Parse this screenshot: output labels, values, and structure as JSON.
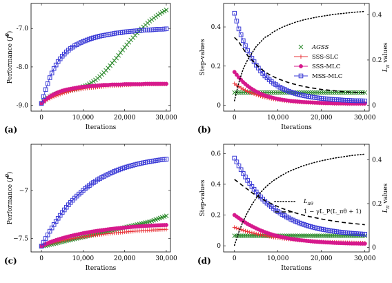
{
  "chart_data": [
    {
      "panel_label": "(a)",
      "type": "line",
      "xlabel": "Iterations",
      "ylabel": "Performance (J^θ)",
      "xlim": [
        -2500,
        31000
      ],
      "ylim": [
        -9.15,
        -6.35
      ],
      "xticks": [
        0,
        10000,
        20000,
        30000
      ],
      "xtick_labels": [
        "0",
        "10,000",
        "20,000",
        "30,000"
      ],
      "yticks": [
        -9.0,
        -8.0,
        -7.0
      ],
      "ytick_labels": [
        "-9.0",
        "-8.0",
        "-7.0"
      ],
      "x": [
        0,
        1000,
        2000,
        3000,
        4000,
        5000,
        6000,
        7000,
        8000,
        9000,
        10000,
        11000,
        12000,
        13000,
        14000,
        15000,
        16000,
        17000,
        18000,
        19000,
        20000,
        21000,
        22000,
        23000,
        24000,
        25000,
        26000,
        27000,
        28000,
        29000,
        30000
      ],
      "series": [
        {
          "name": "AGSS",
          "color": "#2e8b2e",
          "marker": "x",
          "values": [
            -8.95,
            -8.84,
            -8.77,
            -8.72,
            -8.68,
            -8.65,
            -8.62,
            -8.6,
            -8.58,
            -8.55,
            -8.51,
            -8.47,
            -8.41,
            -8.34,
            -8.25,
            -8.15,
            -8.03,
            -7.9,
            -7.77,
            -7.63,
            -7.49,
            -7.36,
            -7.24,
            -7.12,
            -7.01,
            -6.91,
            -6.81,
            -6.73,
            -6.65,
            -6.58,
            -6.52
          ]
        },
        {
          "name": "SSS-SLC",
          "color": "#e8343a",
          "marker": "+",
          "values": [
            -8.95,
            -8.88,
            -8.82,
            -8.77,
            -8.73,
            -8.69,
            -8.66,
            -8.63,
            -8.61,
            -8.59,
            -8.57,
            -8.55,
            -8.54,
            -8.53,
            -8.52,
            -8.51,
            -8.5,
            -8.49,
            -8.48,
            -8.48,
            -8.47,
            -8.47,
            -8.46,
            -8.46,
            -8.46,
            -8.45,
            -8.45,
            -8.45,
            -8.45,
            -8.45,
            -8.45
          ]
        },
        {
          "name": "SSS-MLC",
          "color": "#d6198c",
          "marker": "o",
          "values": [
            -8.95,
            -8.85,
            -8.77,
            -8.71,
            -8.66,
            -8.62,
            -8.59,
            -8.57,
            -8.55,
            -8.53,
            -8.52,
            -8.51,
            -8.5,
            -8.49,
            -8.48,
            -8.47,
            -8.47,
            -8.46,
            -8.46,
            -8.46,
            -8.45,
            -8.45,
            -8.45,
            -8.45,
            -8.45,
            -8.44,
            -8.44,
            -8.44,
            -8.44,
            -8.44,
            -8.44
          ]
        },
        {
          "name": "MSS-MLC",
          "color": "#3a3ad6",
          "marker": "s",
          "values": [
            -8.95,
            -8.59,
            -8.28,
            -8.04,
            -7.86,
            -7.72,
            -7.61,
            -7.52,
            -7.45,
            -7.39,
            -7.34,
            -7.3,
            -7.26,
            -7.23,
            -7.2,
            -7.18,
            -7.16,
            -7.14,
            -7.12,
            -7.11,
            -7.09,
            -7.08,
            -7.07,
            -7.06,
            -7.05,
            -7.04,
            -7.04,
            -7.03,
            -7.02,
            -7.02,
            -7.01
          ]
        }
      ]
    },
    {
      "panel_label": "(b)",
      "type": "line",
      "xlabel": "Iterations",
      "ylabel": "Step-values",
      "y2label": "L_π values",
      "xlim": [
        -2500,
        31000
      ],
      "ylim": [
        -0.03,
        0.52
      ],
      "y2lim": [
        -0.026,
        0.45
      ],
      "xticks": [
        0,
        10000,
        20000,
        30000
      ],
      "xtick_labels": [
        "0",
        "10,000",
        "20,000",
        "30,000"
      ],
      "yticks": [
        0,
        0.2,
        0.4
      ],
      "ytick_labels": [
        "0",
        "0.2",
        "0.4"
      ],
      "y2ticks": [
        0,
        0.2,
        0.4
      ],
      "y2tick_labels": [
        "0",
        "0.2",
        "0.4"
      ],
      "legend": [
        "AGSS",
        "SSS-SLC",
        "SSS-MLC",
        "MSS-MLC"
      ],
      "x": [
        0,
        1000,
        2000,
        3000,
        4000,
        5000,
        6000,
        7000,
        8000,
        9000,
        10000,
        11000,
        12000,
        13000,
        14000,
        15000,
        16000,
        17000,
        18000,
        19000,
        20000,
        21000,
        22000,
        23000,
        24000,
        25000,
        26000,
        27000,
        28000,
        29000,
        30000
      ],
      "series": [
        {
          "name": "AGSS",
          "color": "#2e8b2e",
          "marker": "x",
          "values": [
            0.065,
            0.065,
            0.065,
            0.065,
            0.065,
            0.065,
            0.065,
            0.065,
            0.065,
            0.065,
            0.065,
            0.065,
            0.065,
            0.065,
            0.065,
            0.065,
            0.065,
            0.065,
            0.065,
            0.065,
            0.065,
            0.065,
            0.065,
            0.065,
            0.065,
            0.065,
            0.065,
            0.065,
            0.065,
            0.065,
            0.065
          ]
        },
        {
          "name": "SSS-SLC",
          "color": "#e8343a",
          "marker": "+",
          "values": [
            0.11,
            0.095,
            0.082,
            0.071,
            0.062,
            0.054,
            0.047,
            0.041,
            0.036,
            0.032,
            0.028,
            0.025,
            0.022,
            0.02,
            0.018,
            0.016,
            0.015,
            0.014,
            0.013,
            0.012,
            0.011,
            0.01,
            0.01,
            0.009,
            0.009,
            0.009,
            0.008,
            0.008,
            0.008,
            0.008,
            0.008
          ]
        },
        {
          "name": "SSS-MLC",
          "color": "#d6198c",
          "marker": "o",
          "values": [
            0.17,
            0.142,
            0.118,
            0.099,
            0.083,
            0.07,
            0.059,
            0.05,
            0.043,
            0.037,
            0.032,
            0.028,
            0.025,
            0.022,
            0.02,
            0.018,
            0.016,
            0.015,
            0.014,
            0.013,
            0.012,
            0.011,
            0.011,
            0.01,
            0.01,
            0.01,
            0.009,
            0.009,
            0.009,
            0.009,
            0.009
          ]
        },
        {
          "name": "MSS-MLC",
          "color": "#3a3ad6",
          "marker": "s",
          "values": [
            0.47,
            0.39,
            0.33,
            0.28,
            0.24,
            0.205,
            0.175,
            0.15,
            0.13,
            0.113,
            0.098,
            0.086,
            0.076,
            0.067,
            0.06,
            0.054,
            0.049,
            0.045,
            0.041,
            0.038,
            0.035,
            0.033,
            0.031,
            0.029,
            0.028,
            0.026,
            0.025,
            0.024,
            0.023,
            0.023,
            0.022
          ]
        },
        {
          "name": "",
          "axis": "right",
          "color": "#000000",
          "style": "dotted",
          "values": [
            0.02,
            0.1,
            0.16,
            0.2,
            0.23,
            0.26,
            0.28,
            0.3,
            0.31,
            0.325,
            0.335,
            0.345,
            0.353,
            0.36,
            0.367,
            0.372,
            0.378,
            0.382,
            0.386,
            0.39,
            0.393,
            0.396,
            0.399,
            0.402,
            0.404,
            0.406,
            0.408,
            0.41,
            0.412,
            0.413,
            0.415
          ]
        },
        {
          "name": "",
          "axis": "right",
          "color": "#000000",
          "style": "dashed",
          "values": [
            0.3,
            0.28,
            0.25,
            0.22,
            0.2,
            0.18,
            0.162,
            0.148,
            0.136,
            0.126,
            0.117,
            0.11,
            0.103,
            0.097,
            0.092,
            0.087,
            0.083,
            0.079,
            0.076,
            0.073,
            0.07,
            0.068,
            0.066,
            0.064,
            0.062,
            0.06,
            0.059,
            0.058,
            0.057,
            0.056,
            0.055
          ]
        }
      ]
    },
    {
      "panel_label": "(c)",
      "type": "line",
      "xlabel": "Iterations",
      "ylabel": "Performance (J^θ)",
      "xlim": [
        -2500,
        31000
      ],
      "ylim": [
        -7.64,
        -6.52
      ],
      "xticks": [
        0,
        10000,
        20000,
        30000
      ],
      "xtick_labels": [
        "0",
        "10,000",
        "20,000",
        "30,000"
      ],
      "yticks": [
        -7.5,
        -7.0
      ],
      "ytick_labels": [
        "−7.5",
        "−7"
      ],
      "x": [
        0,
        1000,
        2000,
        3000,
        4000,
        5000,
        6000,
        7000,
        8000,
        9000,
        10000,
        11000,
        12000,
        13000,
        14000,
        15000,
        16000,
        17000,
        18000,
        19000,
        20000,
        21000,
        22000,
        23000,
        24000,
        25000,
        26000,
        27000,
        28000,
        29000,
        30000
      ],
      "series": [
        {
          "name": "AGSS",
          "color": "#2e8b2e",
          "marker": "x",
          "values": [
            -7.58,
            -7.575,
            -7.565,
            -7.555,
            -7.545,
            -7.535,
            -7.525,
            -7.515,
            -7.505,
            -7.495,
            -7.485,
            -7.475,
            -7.465,
            -7.455,
            -7.445,
            -7.435,
            -7.425,
            -7.415,
            -7.405,
            -7.395,
            -7.385,
            -7.375,
            -7.365,
            -7.355,
            -7.345,
            -7.335,
            -7.325,
            -7.31,
            -7.295,
            -7.28,
            -7.265
          ]
        },
        {
          "name": "SSS-SLC",
          "color": "#e8343a",
          "marker": "+",
          "values": [
            -7.58,
            -7.565,
            -7.552,
            -7.54,
            -7.53,
            -7.52,
            -7.512,
            -7.504,
            -7.497,
            -7.49,
            -7.483,
            -7.477,
            -7.471,
            -7.465,
            -7.46,
            -7.455,
            -7.45,
            -7.445,
            -7.441,
            -7.437,
            -7.433,
            -7.429,
            -7.426,
            -7.423,
            -7.42,
            -7.417,
            -7.414,
            -7.411,
            -7.409,
            -7.407,
            -7.405
          ]
        },
        {
          "name": "SSS-MLC",
          "color": "#d6198c",
          "marker": "o",
          "values": [
            -7.58,
            -7.558,
            -7.54,
            -7.524,
            -7.51,
            -7.497,
            -7.485,
            -7.474,
            -7.464,
            -7.455,
            -7.446,
            -7.438,
            -7.43,
            -7.423,
            -7.417,
            -7.411,
            -7.405,
            -7.4,
            -7.395,
            -7.391,
            -7.387,
            -7.383,
            -7.379,
            -7.376,
            -7.373,
            -7.37,
            -7.367,
            -7.365,
            -7.363,
            -7.361,
            -7.36
          ]
        },
        {
          "name": "MSS-MLC",
          "color": "#3a3ad6",
          "marker": "s",
          "values": [
            -7.58,
            -7.5,
            -7.425,
            -7.355,
            -7.29,
            -7.23,
            -7.175,
            -7.125,
            -7.08,
            -7.038,
            -7.0,
            -6.965,
            -6.933,
            -6.904,
            -6.878,
            -6.854,
            -6.832,
            -6.812,
            -6.794,
            -6.778,
            -6.763,
            -6.75,
            -6.738,
            -6.727,
            -6.717,
            -6.708,
            -6.7,
            -6.693,
            -6.686,
            -6.68,
            -6.675
          ]
        }
      ]
    },
    {
      "panel_label": "(d)",
      "type": "line",
      "xlabel": "Iterations",
      "ylabel": "Step-values",
      "y2label": "L_π values",
      "xlim": [
        -2500,
        31000
      ],
      "ylim": [
        -0.04,
        0.66
      ],
      "y2lim": [
        -0.02,
        0.47
      ],
      "xticks": [
        0,
        10000,
        20000,
        30000
      ],
      "xtick_labels": [
        "0",
        "10,000",
        "20,000",
        "30,000"
      ],
      "yticks": [
        0,
        0.2,
        0.4,
        0.6
      ],
      "ytick_labels": [
        "0",
        "0.2",
        "0.4",
        "0.6"
      ],
      "y2ticks": [
        0,
        0.2,
        0.4
      ],
      "y2tick_labels": [
        "0",
        "0.2",
        "0.4"
      ],
      "legend": [
        "L_πθ",
        "1 − γL_P(L_πθ + 1)"
      ],
      "x": [
        0,
        1000,
        2000,
        3000,
        4000,
        5000,
        6000,
        7000,
        8000,
        9000,
        10000,
        11000,
        12000,
        13000,
        14000,
        15000,
        16000,
        17000,
        18000,
        19000,
        20000,
        21000,
        22000,
        23000,
        24000,
        25000,
        26000,
        27000,
        28000,
        29000,
        30000
      ],
      "series": [
        {
          "name": "AGSS",
          "color": "#2e8b2e",
          "marker": "x",
          "values": [
            0.065,
            0.065,
            0.065,
            0.065,
            0.065,
            0.065,
            0.065,
            0.065,
            0.065,
            0.065,
            0.065,
            0.065,
            0.065,
            0.065,
            0.065,
            0.065,
            0.065,
            0.065,
            0.065,
            0.065,
            0.065,
            0.065,
            0.065,
            0.065,
            0.065,
            0.065,
            0.065,
            0.065,
            0.065,
            0.065,
            0.065
          ]
        },
        {
          "name": "SSS-SLC",
          "color": "#e8343a",
          "marker": "+",
          "values": [
            0.12,
            0.11,
            0.1,
            0.092,
            0.085,
            0.078,
            0.072,
            0.066,
            0.061,
            0.056,
            0.052,
            0.048,
            0.045,
            0.042,
            0.039,
            0.036,
            0.034,
            0.032,
            0.03,
            0.028,
            0.026,
            0.025,
            0.024,
            0.023,
            0.022,
            0.021,
            0.02,
            0.02,
            0.019,
            0.019,
            0.018
          ]
        },
        {
          "name": "SSS-MLC",
          "color": "#d6198c",
          "marker": "o",
          "values": [
            0.2,
            0.18,
            0.16,
            0.142,
            0.127,
            0.113,
            0.1,
            0.089,
            0.079,
            0.07,
            0.063,
            0.056,
            0.05,
            0.045,
            0.041,
            0.037,
            0.034,
            0.031,
            0.028,
            0.026,
            0.024,
            0.022,
            0.021,
            0.019,
            0.018,
            0.017,
            0.016,
            0.015,
            0.015,
            0.014,
            0.014
          ]
        },
        {
          "name": "MSS-MLC",
          "color": "#3a3ad6",
          "marker": "s",
          "values": [
            0.57,
            0.52,
            0.47,
            0.425,
            0.385,
            0.35,
            0.318,
            0.29,
            0.265,
            0.242,
            0.222,
            0.204,
            0.188,
            0.173,
            0.16,
            0.148,
            0.138,
            0.129,
            0.121,
            0.114,
            0.108,
            0.103,
            0.098,
            0.094,
            0.09,
            0.087,
            0.084,
            0.081,
            0.079,
            0.077,
            0.075
          ]
        },
        {
          "name": "L_πθ",
          "axis": "right",
          "color": "#000000",
          "style": "dotted",
          "values": [
            0.01,
            0.07,
            0.12,
            0.16,
            0.195,
            0.225,
            0.25,
            0.272,
            0.29,
            0.305,
            0.318,
            0.33,
            0.341,
            0.35,
            0.358,
            0.366,
            0.373,
            0.379,
            0.385,
            0.39,
            0.395,
            0.399,
            0.403,
            0.407,
            0.41,
            0.413,
            0.416,
            0.419,
            0.421,
            0.423,
            0.425
          ]
        },
        {
          "name": "1 − γL_P(L_πθ + 1)",
          "axis": "right",
          "color": "#000000",
          "style": "dashed",
          "values": [
            0.31,
            0.295,
            0.28,
            0.265,
            0.25,
            0.237,
            0.225,
            0.214,
            0.204,
            0.195,
            0.186,
            0.178,
            0.171,
            0.164,
            0.158,
            0.152,
            0.147,
            0.142,
            0.138,
            0.134,
            0.13,
            0.126,
            0.123,
            0.12,
            0.117,
            0.114,
            0.112,
            0.11,
            0.108,
            0.106,
            0.104
          ]
        }
      ]
    }
  ]
}
